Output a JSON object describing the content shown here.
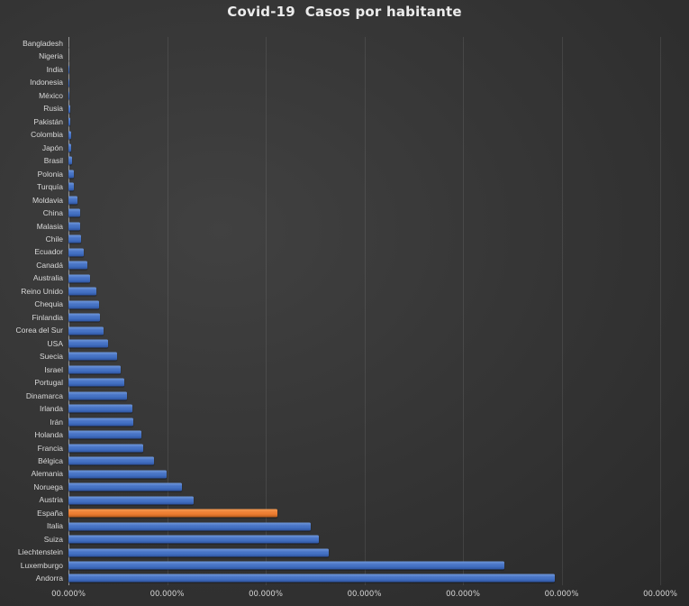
{
  "title": "Covid-19  Casos por habitante",
  "colors": {
    "bar_default": "#4472C4",
    "bar_highlight": "#ED7D31",
    "background_center": "#414141",
    "background_edge": "#272727",
    "text": "#D9D9D9",
    "axis_line": "#9A9A9A"
  },
  "chart_data": {
    "type": "bar",
    "orientation": "horizontal",
    "title": "Covid-19  Casos por habitante",
    "xlabel": "",
    "ylabel": "",
    "legend": "none",
    "grid": true,
    "categories": [
      "Bangladesh",
      "Nigeria",
      "India",
      "Indonesia",
      "México",
      "Rusia",
      "Pakistán",
      "Colombia",
      "Japón",
      "Brasil",
      "Polonia",
      "Turquía",
      "Moldavia",
      "China",
      "Malasia",
      "Chile",
      "Ecuador",
      "Canadá",
      "Australia",
      "Reino Unido",
      "Chequia",
      "Finlandia",
      "Corea del Sur",
      "USA",
      "Suecia",
      "Israel",
      "Portugal",
      "Dinamarca",
      "Irlanda",
      "Irán",
      "Holanda",
      "Francia",
      "Bélgica",
      "Alemania",
      "Noruega",
      "Austria",
      "España",
      "Italia",
      "Suiza",
      "Liechtenstein",
      "Luxemburgo",
      "Andorra"
    ],
    "values_pct_of_axis_max": [
      0.05,
      0.05,
      0.1,
      0.1,
      0.2,
      0.33,
      0.33,
      0.5,
      0.43,
      0.55,
      0.87,
      0.96,
      1.5,
      1.93,
      2.02,
      2.09,
      2.6,
      3.15,
      3.6,
      4.76,
      5.13,
      5.33,
      5.94,
      6.65,
      8.2,
      8.8,
      9.4,
      9.9,
      10.8,
      10.9,
      12.4,
      12.6,
      14.4,
      16.6,
      19.2,
      21.2,
      35.3,
      41.0,
      42.3,
      44.0,
      73.7,
      82.2
    ],
    "value_unit": "percent of x-axis maximum (axis spans 6 gridline intervals; numeric tick labels unreadable in source)",
    "highlight_category": "España",
    "bar_color": "#4472C4",
    "highlight_color": "#ED7D31",
    "x_axis": {
      "tick_labels": [
        "00.000%",
        "00.000%",
        "00.000%",
        "00.000%",
        "00.000%",
        "00.000%",
        "00.000%"
      ]
    }
  }
}
